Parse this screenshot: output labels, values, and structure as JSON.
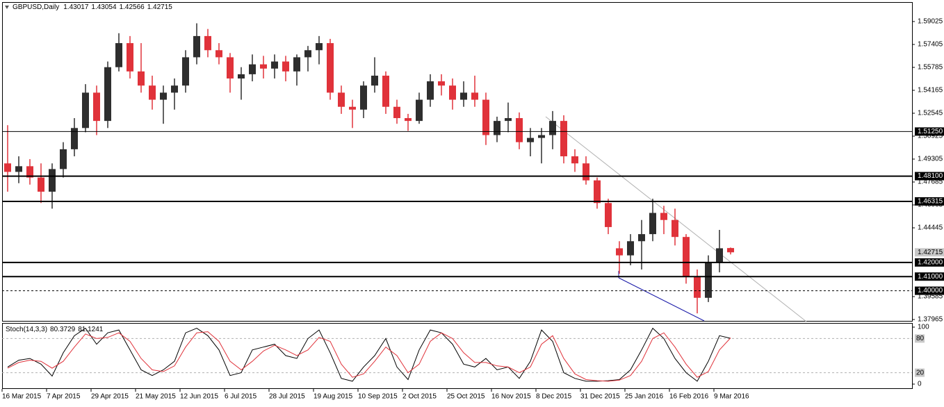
{
  "chart_data": [
    {
      "type": "candlestick",
      "title": "GBPUSD,Daily",
      "xticks": [
        {
          "value": 0,
          "label": "16 Mar 2015"
        },
        {
          "value": 4,
          "label": "7 Apr 2015"
        },
        {
          "value": 8,
          "label": "29 Apr 2015"
        },
        {
          "value": 12,
          "label": "21 May 2015"
        },
        {
          "value": 16,
          "label": "12 Jun 2015"
        },
        {
          "value": 20,
          "label": "6 Jul 2015"
        },
        {
          "value": 24,
          "label": "28 Jul 2015"
        },
        {
          "value": 28,
          "label": "19 Aug 2015"
        },
        {
          "value": 32,
          "label": "10 Sep 2015"
        },
        {
          "value": 36,
          "label": "2 Oct 2015"
        },
        {
          "value": 40,
          "label": "25 Oct 2015"
        },
        {
          "value": 44,
          "label": "16 Nov 2015"
        },
        {
          "value": 48,
          "label": "8 Dec 2015"
        },
        {
          "value": 52,
          "label": "31 Dec 2015"
        },
        {
          "value": 56,
          "label": "25 Jan 2016"
        },
        {
          "value": 60,
          "label": "16 Feb 2016"
        },
        {
          "value": 64,
          "label": "9 Mar 2016"
        }
      ],
      "open": [
        1.49,
        1.484,
        1.488,
        1.48,
        1.47,
        1.486,
        1.5,
        1.515,
        1.54,
        1.52,
        1.558,
        1.575,
        1.555,
        1.545,
        1.535,
        1.54,
        1.545,
        1.565,
        1.58,
        1.57,
        1.565,
        1.55,
        1.553,
        1.56,
        1.557,
        1.562,
        1.555,
        1.565,
        1.57,
        1.575,
        1.54,
        1.53,
        1.528,
        1.545,
        1.552,
        1.53,
        1.522,
        1.52,
        1.535,
        1.548,
        1.545,
        1.535,
        1.54,
        1.535,
        1.51,
        1.52,
        1.522,
        1.505,
        1.508,
        1.51,
        1.52,
        1.495,
        1.49,
        1.478,
        1.462,
        1.43,
        1.425,
        1.435,
        1.44,
        1.455,
        1.45,
        1.438,
        1.41,
        1.395,
        1.42,
        1.43017
      ],
      "high": [
        1.517,
        1.495,
        1.493,
        1.49,
        1.49,
        1.505,
        1.522,
        1.546,
        1.545,
        1.562,
        1.582,
        1.58,
        1.575,
        1.552,
        1.545,
        1.55,
        1.57,
        1.589,
        1.585,
        1.575,
        1.568,
        1.558,
        1.567,
        1.566,
        1.567,
        1.566,
        1.567,
        1.573,
        1.58,
        1.578,
        1.545,
        1.535,
        1.548,
        1.565,
        1.555,
        1.535,
        1.525,
        1.54,
        1.553,
        1.553,
        1.55,
        1.548,
        1.552,
        1.54,
        1.523,
        1.533,
        1.526,
        1.515,
        1.515,
        1.527,
        1.524,
        1.5,
        1.495,
        1.48,
        1.465,
        1.435,
        1.44,
        1.45,
        1.465,
        1.46,
        1.458,
        1.44,
        1.415,
        1.425,
        1.443,
        1.43054
      ],
      "low": [
        1.47,
        1.476,
        1.475,
        1.462,
        1.458,
        1.48,
        1.495,
        1.512,
        1.51,
        1.515,
        1.555,
        1.55,
        1.54,
        1.528,
        1.518,
        1.528,
        1.54,
        1.56,
        1.565,
        1.56,
        1.54,
        1.535,
        1.548,
        1.55,
        1.55,
        1.548,
        1.545,
        1.555,
        1.56,
        1.535,
        1.525,
        1.515,
        1.522,
        1.54,
        1.525,
        1.518,
        1.513,
        1.518,
        1.53,
        1.538,
        1.528,
        1.53,
        1.53,
        1.503,
        1.505,
        1.512,
        1.5,
        1.495,
        1.49,
        1.5,
        1.49,
        1.484,
        1.475,
        1.458,
        1.44,
        1.412,
        1.418,
        1.415,
        1.435,
        1.44,
        1.432,
        1.405,
        1.384,
        1.392,
        1.413,
        1.42566
      ],
      "close": [
        1.484,
        1.488,
        1.48,
        1.47,
        1.486,
        1.5,
        1.515,
        1.54,
        1.52,
        1.558,
        1.575,
        1.555,
        1.545,
        1.535,
        1.54,
        1.545,
        1.565,
        1.58,
        1.57,
        1.565,
        1.55,
        1.553,
        1.56,
        1.557,
        1.562,
        1.555,
        1.565,
        1.57,
        1.575,
        1.54,
        1.53,
        1.528,
        1.545,
        1.552,
        1.53,
        1.522,
        1.52,
        1.535,
        1.548,
        1.545,
        1.535,
        1.54,
        1.535,
        1.51,
        1.52,
        1.522,
        1.505,
        1.508,
        1.51,
        1.52,
        1.495,
        1.49,
        1.478,
        1.462,
        1.445,
        1.425,
        1.435,
        1.44,
        1.455,
        1.45,
        1.438,
        1.41,
        1.395,
        1.42,
        1.43,
        1.42715
      ],
      "up_color": "#2e2e2e",
      "down_color": "#e0323a",
      "ylim": [
        1.3782,
        1.604
      ],
      "yticks": [
        1.59025,
        1.57405,
        1.55785,
        1.54165,
        1.52545,
        1.50925,
        1.49305,
        1.47685,
        1.46065,
        1.44445,
        1.39585,
        1.37965
      ],
      "levels": [
        {
          "value": 1.5125,
          "label": "1.51250",
          "width": 1,
          "dashed": false
        },
        {
          "value": 1.481,
          "label": "1.48100",
          "width": 2,
          "dashed": false
        },
        {
          "value": 1.46315,
          "label": "1.46315",
          "width": 2,
          "dashed": false
        },
        {
          "value": 1.42,
          "label": "1.42000",
          "width": 2,
          "dashed": false
        },
        {
          "value": 1.41,
          "label": "1.41000",
          "width": 2,
          "dashed": false
        },
        {
          "value": 1.4,
          "label": "1.40000",
          "width": 1,
          "dashed": true
        }
      ],
      "price_label": {
        "value": 1.42715,
        "label": "1.42715"
      }
    },
    {
      "type": "line",
      "title": "Stoch(14,3,3)",
      "series": [
        {
          "color": "#000000",
          "values": [
            30,
            42,
            45,
            35,
            14,
            55,
            85,
            98,
            70,
            90,
            95,
            60,
            25,
            15,
            25,
            40,
            90,
            98,
            85,
            60,
            15,
            20,
            60,
            65,
            70,
            50,
            45,
            80,
            95,
            55,
            10,
            5,
            30,
            50,
            80,
            30,
            8,
            60,
            95,
            90,
            70,
            35,
            30,
            45,
            25,
            30,
            10,
            40,
            95,
            75,
            20,
            10,
            5,
            5,
            6,
            8,
            25,
            60,
            98,
            80,
            45,
            20,
            5,
            40,
            85,
            80.3729
          ]
        },
        {
          "color": "#e0323a",
          "values": [
            28,
            38,
            42,
            40,
            28,
            40,
            65,
            88,
            80,
            82,
            90,
            75,
            45,
            25,
            22,
            32,
            65,
            90,
            92,
            75,
            40,
            25,
            40,
            58,
            68,
            60,
            50,
            60,
            82,
            75,
            35,
            12,
            18,
            40,
            65,
            50,
            20,
            35,
            75,
            90,
            80,
            55,
            38,
            38,
            32,
            30,
            20,
            30,
            70,
            85,
            45,
            18,
            8,
            6,
            5,
            7,
            15,
            40,
            80,
            90,
            65,
            35,
            12,
            22,
            60,
            81.1241
          ]
        }
      ],
      "ylim": [
        -8.5,
        107.3
      ],
      "yticks": [
        0,
        100
      ],
      "levels": [
        20,
        80
      ]
    }
  ]
}
